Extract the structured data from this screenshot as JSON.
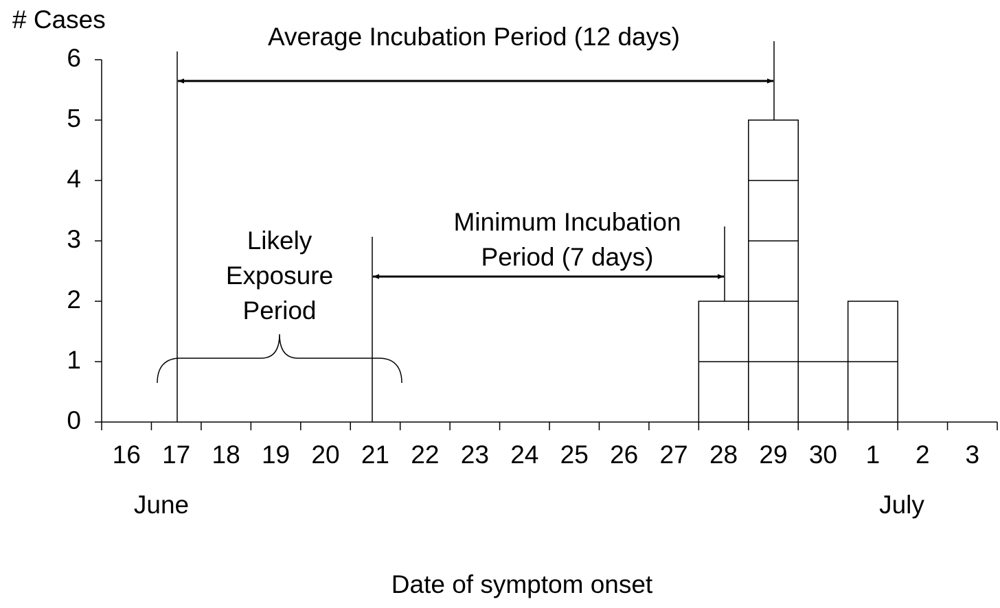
{
  "chart_data": {
    "type": "bar",
    "y_label": "# Cases",
    "x_label": "Date of symptom onset",
    "annotations": {
      "average": "Average Incubation Period (12 days)",
      "minimum": [
        "Minimum Incubation",
        "Period (7 days)"
      ],
      "exposure": [
        "Likely",
        "Exposure",
        "Period"
      ]
    },
    "month_labels": [
      "June",
      "July"
    ],
    "categories": [
      "16",
      "17",
      "18",
      "19",
      "20",
      "21",
      "22",
      "23",
      "24",
      "25",
      "26",
      "27",
      "28",
      "29",
      "30",
      "1",
      "2",
      "3"
    ],
    "values": [
      0,
      0,
      0,
      0,
      0,
      0,
      0,
      0,
      0,
      0,
      0,
      0,
      2,
      5,
      1,
      2,
      0,
      0
    ],
    "color": "#ffffff",
    "ylim": [
      0,
      6
    ],
    "yticks": [
      0,
      1,
      2,
      3,
      4,
      5,
      6
    ],
    "grid": false
  }
}
